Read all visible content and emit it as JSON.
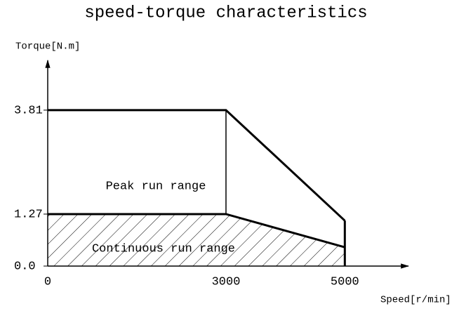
{
  "chart_data": {
    "type": "line",
    "title": "speed-torque characteristics",
    "y_label": "Torque[N.m]",
    "x_label": "Speed[r/min]",
    "x": [
      0,
      3000,
      5000
    ],
    "series": [
      {
        "name": "Peak run range",
        "color": "#000000",
        "values": [
          3.81,
          3.81,
          1.11
        ]
      },
      {
        "name": "Continuous run range",
        "color": "#000000",
        "values": [
          1.27,
          1.27,
          0.46
        ],
        "hatch": true
      }
    ],
    "xlim": [
      0,
      6000
    ],
    "ylim": [
      0,
      5
    ],
    "xticks": [
      0,
      3000,
      5000
    ],
    "yticks": [
      {
        "value": 0,
        "label": "0.0"
      },
      1.27,
      3.81
    ],
    "grid": false
  }
}
